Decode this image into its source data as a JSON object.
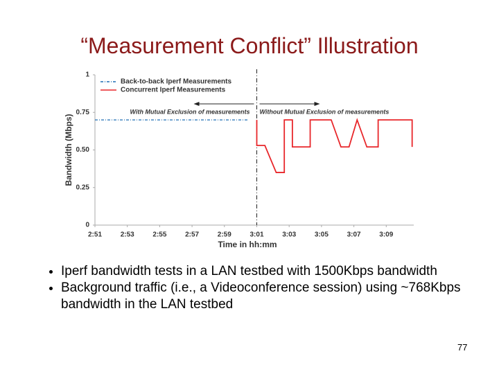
{
  "slide": {
    "title": "“Measurement Conflict” Illustration",
    "bullets": [
      "Iperf bandwidth tests in a LAN testbed with 1500Kbps bandwidth",
      "Background traffic (i.e., a Videoconference session) using ~768Kbps bandwidth in the LAN testbed"
    ],
    "page_number": "77"
  },
  "chart_data": {
    "type": "line",
    "xlabel": "Time in hh:mm",
    "ylabel": "Bandwidth (Mbps)",
    "annotations": [
      "With Mutual Exclusion of measurements",
      "Without Mutual Exclusion of measurements"
    ],
    "xlim": [
      51,
      70.7
    ],
    "ylim": [
      0,
      1
    ],
    "xticks": [
      {
        "value": 51,
        "label": "2:51"
      },
      {
        "value": 53,
        "label": "2:53"
      },
      {
        "value": 55,
        "label": "2:55"
      },
      {
        "value": 57,
        "label": "2:57"
      },
      {
        "value": 59,
        "label": "2:59"
      },
      {
        "value": 61,
        "label": "3:01"
      },
      {
        "value": 63,
        "label": "3:03"
      },
      {
        "value": 65,
        "label": "3:05"
      },
      {
        "value": 67,
        "label": "3:07"
      },
      {
        "value": 69,
        "label": "3:09"
      }
    ],
    "yticks": [
      0,
      0.25,
      {
        "value": 0.5,
        "label": "0.50"
      },
      0.75,
      1
    ],
    "grid": false,
    "legend": "upper left",
    "series": [
      {
        "name": "Back-to-back Iperf Measurements",
        "color": "#1f6fb4",
        "dash": true,
        "x": [
          51,
          60.5
        ],
        "values": [
          0.7,
          0.7
        ]
      },
      {
        "name": "Concurrent Iperf Measurements",
        "color": "#e8262a",
        "dash": false,
        "x": [
          61,
          61,
          61.5,
          62.2,
          62.7,
          62.7,
          63.2,
          63.2,
          64.3,
          64.3,
          65.6,
          66.2,
          66.7,
          67.2,
          67.8,
          68.5,
          68.5,
          70.6,
          70.6
        ],
        "values": [
          0.7,
          0.53,
          0.53,
          0.35,
          0.35,
          0.7,
          0.7,
          0.52,
          0.52,
          0.7,
          0.7,
          0.52,
          0.52,
          0.7,
          0.52,
          0.52,
          0.7,
          0.7,
          0.52
        ]
      }
    ]
  }
}
